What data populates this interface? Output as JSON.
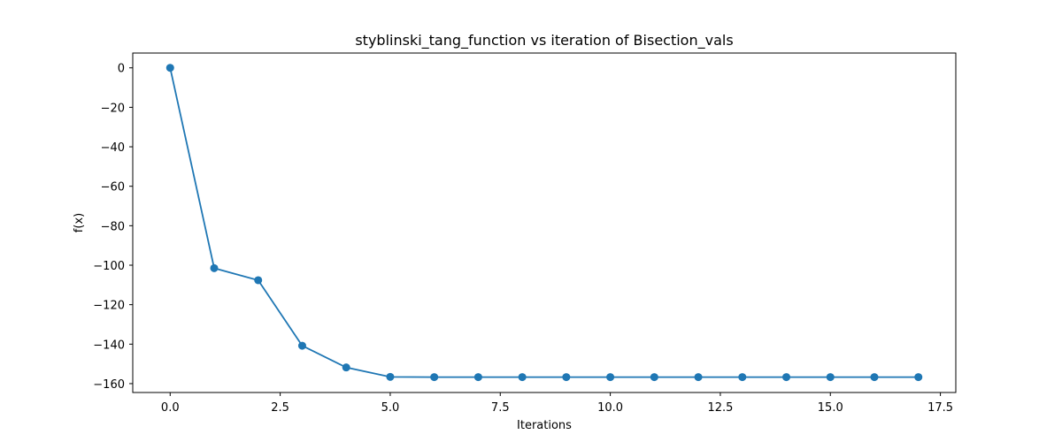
{
  "chart_data": {
    "type": "line",
    "title": "styblinski_tang_function vs iteration of Bisection_vals",
    "xlabel": "Iterations",
    "ylabel": "f(x)",
    "xlim": [
      -0.85,
      17.85
    ],
    "ylim": [
      -164.5,
      7.5
    ],
    "x_ticks": [
      0.0,
      2.5,
      5.0,
      7.5,
      10.0,
      12.5,
      15.0,
      17.5
    ],
    "x_tick_labels": [
      "0.0",
      "2.5",
      "5.0",
      "7.5",
      "10.0",
      "12.5",
      "15.0",
      "17.5"
    ],
    "y_ticks": [
      0,
      -20,
      -40,
      -60,
      -80,
      -100,
      -120,
      -140,
      -160
    ],
    "y_tick_labels": [
      "0",
      "−20",
      "−40",
      "−60",
      "−80",
      "−100",
      "−120",
      "−140",
      "−160"
    ],
    "grid": false,
    "series": [
      {
        "color": "#1f77b4",
        "marker": "circle",
        "x": [
          0,
          1,
          2,
          3,
          4,
          5,
          6,
          7,
          8,
          9,
          10,
          11,
          12,
          13,
          14,
          15,
          16,
          17
        ],
        "values": [
          0,
          -101.5,
          -107.6,
          -140.8,
          -151.8,
          -156.6,
          -156.7,
          -156.7,
          -156.7,
          -156.7,
          -156.7,
          -156.7,
          -156.7,
          -156.7,
          -156.7,
          -156.7,
          -156.7,
          -156.7
        ]
      }
    ]
  }
}
